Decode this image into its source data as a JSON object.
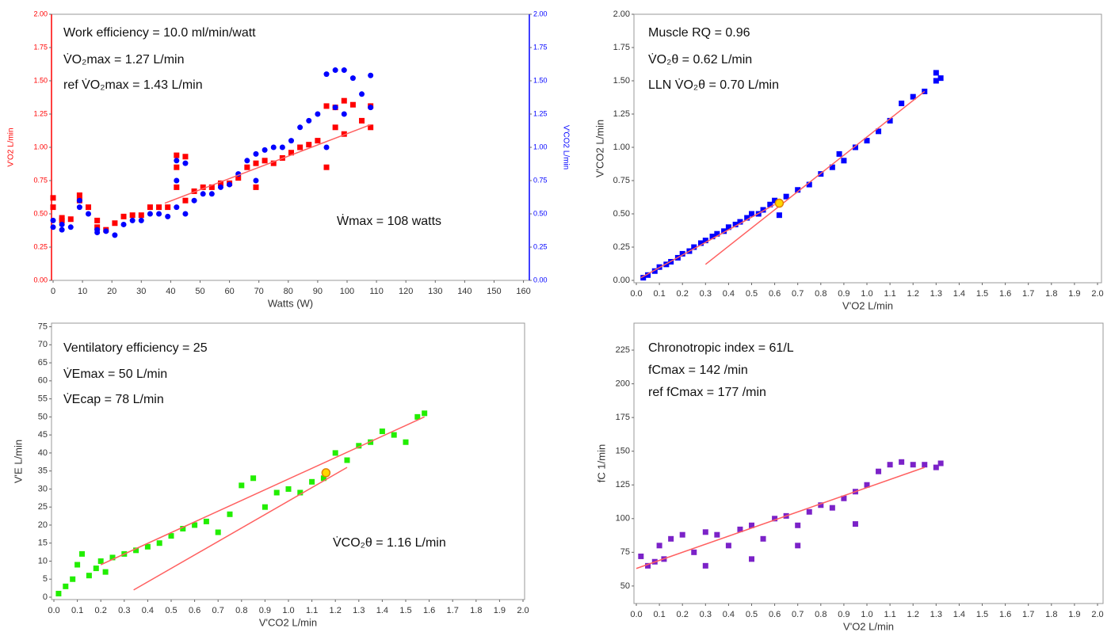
{
  "chart_data": [
    {
      "type": "scatter",
      "xlabel": "Watts (W)",
      "ylabel": "V'O2 L/min",
      "y2label": "V'CO2 L/min",
      "ycolor": "#ff0000",
      "y2color": "#0000ff",
      "xlim": [
        0,
        162
      ],
      "ylim": [
        0,
        2
      ],
      "y2lim": [
        0,
        2
      ],
      "xticks": [
        0,
        10,
        20,
        30,
        40,
        50,
        60,
        70,
        80,
        90,
        100,
        110,
        120,
        130,
        140,
        150,
        160
      ],
      "yticks": [
        {
          "value": 0,
          "label": "0.00"
        },
        {
          "value": 0.25,
          "label": "0.25"
        },
        {
          "value": 0.5,
          "label": "0.50"
        },
        {
          "value": 0.75,
          "label": "0.75"
        },
        {
          "value": 1,
          "label": "1.00"
        },
        {
          "value": 1.25,
          "label": "1.25"
        },
        {
          "value": 1.5,
          "label": "1.50"
        },
        {
          "value": 1.75,
          "label": "1.75"
        },
        {
          "value": 2,
          "label": "2.00"
        }
      ],
      "y2ticks": [
        {
          "value": 0,
          "label": "0.00"
        },
        {
          "value": 0.25,
          "label": "0.25"
        },
        {
          "value": 0.5,
          "label": "0.50"
        },
        {
          "value": 0.75,
          "label": "0.75"
        },
        {
          "value": 1,
          "label": "1.00"
        },
        {
          "value": 1.25,
          "label": "1.25"
        },
        {
          "value": 1.5,
          "label": "1.50"
        },
        {
          "value": 1.75,
          "label": "1.75"
        },
        {
          "value": 2,
          "label": "2.00"
        }
      ],
      "annotations": [
        "Work efficiency = 10.0 ml/min/watt",
        "V̇O₂max = 1.27 L/min",
        "ref V̇O₂max = 1.43 L/min",
        "Ẇmax = 108 watts"
      ],
      "series": [
        {
          "color": "#ff0000",
          "marker": "square",
          "x": [
            0,
            0,
            3,
            3,
            6,
            9,
            9,
            12,
            15,
            15,
            18,
            21,
            24,
            27,
            30,
            33,
            36,
            39,
            42,
            42,
            42,
            45,
            45,
            48,
            51,
            54,
            57,
            60,
            63,
            66,
            69,
            69,
            72,
            75,
            78,
            81,
            84,
            87,
            90,
            93,
            93,
            96,
            96,
            99,
            99,
            102,
            105,
            108,
            108
          ],
          "values": [
            0.62,
            0.55,
            0.47,
            0.45,
            0.46,
            0.64,
            0.6,
            0.55,
            0.45,
            0.4,
            0.38,
            0.43,
            0.48,
            0.49,
            0.49,
            0.55,
            0.55,
            0.55,
            0.94,
            0.85,
            0.7,
            0.93,
            0.6,
            0.67,
            0.7,
            0.7,
            0.73,
            0.73,
            0.77,
            0.85,
            0.88,
            0.7,
            0.9,
            0.88,
            0.92,
            0.96,
            1.0,
            1.02,
            1.05,
            1.31,
            0.85,
            1.3,
            1.15,
            1.35,
            1.1,
            1.32,
            1.2,
            1.31,
            1.15
          ]
        },
        {
          "color": "#0000ff",
          "marker": "circle",
          "axis": "y2",
          "x": [
            0,
            0,
            3,
            3,
            6,
            9,
            9,
            12,
            15,
            15,
            18,
            21,
            24,
            27,
            30,
            33,
            36,
            39,
            42,
            42,
            42,
            45,
            45,
            48,
            51,
            54,
            57,
            60,
            63,
            66,
            69,
            69,
            72,
            75,
            78,
            81,
            84,
            87,
            90,
            93,
            93,
            96,
            96,
            99,
            99,
            102,
            105,
            108,
            108
          ],
          "values": [
            0.45,
            0.4,
            0.42,
            0.38,
            0.4,
            0.6,
            0.55,
            0.5,
            0.38,
            0.36,
            0.37,
            0.34,
            0.42,
            0.45,
            0.45,
            0.5,
            0.5,
            0.48,
            0.9,
            0.75,
            0.55,
            0.88,
            0.5,
            0.6,
            0.65,
            0.65,
            0.7,
            0.72,
            0.8,
            0.9,
            0.95,
            0.75,
            0.98,
            1.0,
            1.0,
            1.05,
            1.15,
            1.2,
            1.25,
            1.55,
            1.0,
            1.58,
            1.3,
            1.58,
            1.25,
            1.52,
            1.4,
            1.54,
            1.3
          ]
        }
      ],
      "lines": [
        {
          "color": "#ff6060",
          "x": [
            38,
            108
          ],
          "values": [
            0.58,
            1.17
          ]
        }
      ]
    },
    {
      "type": "scatter",
      "xlabel": "V'O2 L/min",
      "ylabel": "V'CO2 L/min",
      "xlim": [
        0,
        2
      ],
      "ylim": [
        0,
        2
      ],
      "xticks": [
        {
          "value": 0,
          "label": "0.0"
        },
        {
          "value": 0.1,
          "label": "0.1"
        },
        {
          "value": 0.2,
          "label": "0.2"
        },
        {
          "value": 0.3,
          "label": "0.3"
        },
        {
          "value": 0.4,
          "label": "0.4"
        },
        {
          "value": 0.5,
          "label": "0.5"
        },
        {
          "value": 0.6,
          "label": "0.6"
        },
        {
          "value": 0.7,
          "label": "0.7"
        },
        {
          "value": 0.8,
          "label": "0.8"
        },
        {
          "value": 0.9,
          "label": "0.9"
        },
        {
          "value": 1,
          "label": "1.0"
        },
        {
          "value": 1.1,
          "label": "1.1"
        },
        {
          "value": 1.2,
          "label": "1.2"
        },
        {
          "value": 1.3,
          "label": "1.3"
        },
        {
          "value": 1.4,
          "label": "1.4"
        },
        {
          "value": 1.5,
          "label": "1.5"
        },
        {
          "value": 1.6,
          "label": "1.6"
        },
        {
          "value": 1.7,
          "label": "1.7"
        },
        {
          "value": 1.8,
          "label": "1.8"
        },
        {
          "value": 1.9,
          "label": "1.9"
        },
        {
          "value": 2,
          "label": "2.0"
        }
      ],
      "yticks": [
        {
          "value": 0,
          "label": "0.00"
        },
        {
          "value": 0.25,
          "label": "0.25"
        },
        {
          "value": 0.5,
          "label": "0.50"
        },
        {
          "value": 0.75,
          "label": "0.75"
        },
        {
          "value": 1,
          "label": "1.00"
        },
        {
          "value": 1.25,
          "label": "1.25"
        },
        {
          "value": 1.5,
          "label": "1.50"
        },
        {
          "value": 1.75,
          "label": "1.75"
        },
        {
          "value": 2,
          "label": "2.00"
        }
      ],
      "annotations": [
        "Muscle RQ = 0.96",
        "V̇O₂θ = 0.62 L/min",
        "LLN V̇O₂θ = 0.70 L/min"
      ],
      "series": [
        {
          "color": "#0000ff",
          "marker": "square",
          "x": [
            0.03,
            0.05,
            0.08,
            0.1,
            0.13,
            0.15,
            0.18,
            0.2,
            0.23,
            0.25,
            0.28,
            0.3,
            0.33,
            0.35,
            0.38,
            0.4,
            0.43,
            0.45,
            0.48,
            0.5,
            0.53,
            0.55,
            0.58,
            0.6,
            0.62,
            0.65,
            0.7,
            0.75,
            0.8,
            0.85,
            0.88,
            0.9,
            0.95,
            1.0,
            1.05,
            1.1,
            1.15,
            1.2,
            1.25,
            1.3,
            1.3,
            1.32
          ],
          "values": [
            0.02,
            0.04,
            0.07,
            0.1,
            0.12,
            0.14,
            0.17,
            0.2,
            0.22,
            0.25,
            0.28,
            0.3,
            0.33,
            0.35,
            0.37,
            0.4,
            0.42,
            0.44,
            0.47,
            0.5,
            0.5,
            0.53,
            0.57,
            0.6,
            0.49,
            0.63,
            0.68,
            0.72,
            0.8,
            0.85,
            0.95,
            0.9,
            1.0,
            1.05,
            1.12,
            1.2,
            1.33,
            1.38,
            1.42,
            1.5,
            1.56,
            1.52
          ]
        }
      ],
      "lines": [
        {
          "color": "#ff6060",
          "x": [
            0.02,
            0.6
          ],
          "values": [
            0.02,
            0.57
          ]
        },
        {
          "color": "#ff6060",
          "x": [
            0.3,
            1.25
          ],
          "values": [
            0.12,
            1.42
          ]
        }
      ],
      "highlight": {
        "color": "#ffd700",
        "x": 0.62,
        "value": 0.58
      }
    },
    {
      "type": "scatter",
      "xlabel": "V'CO2 L/min",
      "ylabel": "V'E L/min",
      "xlim": [
        0,
        2
      ],
      "ylim": [
        0,
        76
      ],
      "xticks": [
        {
          "value": 0,
          "label": "0.0"
        },
        {
          "value": 0.1,
          "label": "0.1"
        },
        {
          "value": 0.2,
          "label": "0.2"
        },
        {
          "value": 0.3,
          "label": "0.3"
        },
        {
          "value": 0.4,
          "label": "0.4"
        },
        {
          "value": 0.5,
          "label": "0.5"
        },
        {
          "value": 0.6,
          "label": "0.6"
        },
        {
          "value": 0.7,
          "label": "0.7"
        },
        {
          "value": 0.8,
          "label": "0.8"
        },
        {
          "value": 0.9,
          "label": "0.9"
        },
        {
          "value": 1,
          "label": "1.0"
        },
        {
          "value": 1.1,
          "label": "1.1"
        },
        {
          "value": 1.2,
          "label": "1.2"
        },
        {
          "value": 1.3,
          "label": "1.3"
        },
        {
          "value": 1.4,
          "label": "1.4"
        },
        {
          "value": 1.5,
          "label": "1.5"
        },
        {
          "value": 1.6,
          "label": "1.6"
        },
        {
          "value": 1.7,
          "label": "1.7"
        },
        {
          "value": 1.8,
          "label": "1.8"
        },
        {
          "value": 1.9,
          "label": "1.9"
        },
        {
          "value": 2,
          "label": "2.0"
        }
      ],
      "yticks": [
        0,
        5,
        10,
        15,
        20,
        25,
        30,
        35,
        40,
        45,
        50,
        55,
        60,
        65,
        70,
        75
      ],
      "annotations": [
        "Ventilatory efficiency = 25",
        "V̇Emax = 50 L/min",
        "V̇Ecap = 78 L/min",
        "V̇CO₂θ = 1.16 L/min"
      ],
      "series": [
        {
          "color": "#22ee00",
          "marker": "square",
          "x": [
            0.02,
            0.05,
            0.08,
            0.1,
            0.12,
            0.15,
            0.18,
            0.2,
            0.22,
            0.25,
            0.3,
            0.35,
            0.4,
            0.45,
            0.5,
            0.55,
            0.6,
            0.65,
            0.7,
            0.75,
            0.8,
            0.85,
            0.9,
            0.95,
            1.0,
            1.05,
            1.1,
            1.15,
            1.2,
            1.25,
            1.3,
            1.35,
            1.4,
            1.45,
            1.5,
            1.55,
            1.58
          ],
          "values": [
            1,
            3,
            5,
            9,
            12,
            6,
            8,
            10,
            7,
            11,
            12,
            13,
            14,
            15,
            17,
            19,
            20,
            21,
            18,
            23,
            31,
            33,
            25,
            29,
            30,
            29,
            32,
            33,
            40,
            38,
            42,
            43,
            46,
            45,
            43,
            50,
            51
          ]
        }
      ],
      "lines": [
        {
          "color": "#ff6060",
          "x": [
            0.2,
            1.58
          ],
          "values": [
            9,
            50
          ]
        },
        {
          "color": "#ff6060",
          "x": [
            0.34,
            1.25
          ],
          "values": [
            2,
            36
          ]
        }
      ],
      "highlight": {
        "color": "#ffd700",
        "x": 1.16,
        "value": 34.5
      }
    },
    {
      "type": "scatter",
      "xlabel": "V'O2 L/min",
      "ylabel": "fC 1/min",
      "xlim": [
        0,
        2
      ],
      "ylim": [
        37,
        245
      ],
      "xticks": [
        {
          "value": 0,
          "label": "0.0"
        },
        {
          "value": 0.1,
          "label": "0.1"
        },
        {
          "value": 0.2,
          "label": "0.2"
        },
        {
          "value": 0.3,
          "label": "0.3"
        },
        {
          "value": 0.4,
          "label": "0.4"
        },
        {
          "value": 0.5,
          "label": "0.5"
        },
        {
          "value": 0.6,
          "label": "0.6"
        },
        {
          "value": 0.7,
          "label": "0.7"
        },
        {
          "value": 0.8,
          "label": "0.8"
        },
        {
          "value": 0.9,
          "label": "0.9"
        },
        {
          "value": 1,
          "label": "1.0"
        },
        {
          "value": 1.1,
          "label": "1.1"
        },
        {
          "value": 1.2,
          "label": "1.2"
        },
        {
          "value": 1.3,
          "label": "1.3"
        },
        {
          "value": 1.4,
          "label": "1.4"
        },
        {
          "value": 1.5,
          "label": "1.5"
        },
        {
          "value": 1.6,
          "label": "1.6"
        },
        {
          "value": 1.7,
          "label": "1.7"
        },
        {
          "value": 1.8,
          "label": "1.8"
        },
        {
          "value": 1.9,
          "label": "1.9"
        },
        {
          "value": 2,
          "label": "2.0"
        }
      ],
      "yticks": [
        50,
        75,
        100,
        125,
        150,
        175,
        200,
        225
      ],
      "annotations": [
        "Chronotropic index = 61/L",
        "fCmax = 142 /min",
        "ref fCmax = 177 /min"
      ],
      "series": [
        {
          "color": "#7b22c8",
          "marker": "square",
          "x": [
            0.02,
            0.05,
            0.08,
            0.1,
            0.12,
            0.15,
            0.2,
            0.25,
            0.3,
            0.35,
            0.4,
            0.45,
            0.5,
            0.55,
            0.6,
            0.65,
            0.7,
            0.75,
            0.8,
            0.85,
            0.9,
            0.95,
            1.0,
            1.05,
            1.1,
            1.15,
            1.2,
            1.25,
            1.3,
            1.32,
            0.3,
            0.5,
            0.7,
            0.95
          ],
          "values": [
            72,
            65,
            68,
            80,
            70,
            85,
            88,
            75,
            90,
            88,
            80,
            92,
            95,
            85,
            100,
            102,
            95,
            105,
            110,
            108,
            115,
            120,
            125,
            135,
            140,
            142,
            140,
            140,
            138,
            141,
            65,
            70,
            80,
            96
          ]
        }
      ],
      "lines": [
        {
          "color": "#ff6060",
          "x": [
            0,
            1.25
          ],
          "values": [
            63,
            138
          ]
        }
      ]
    }
  ]
}
